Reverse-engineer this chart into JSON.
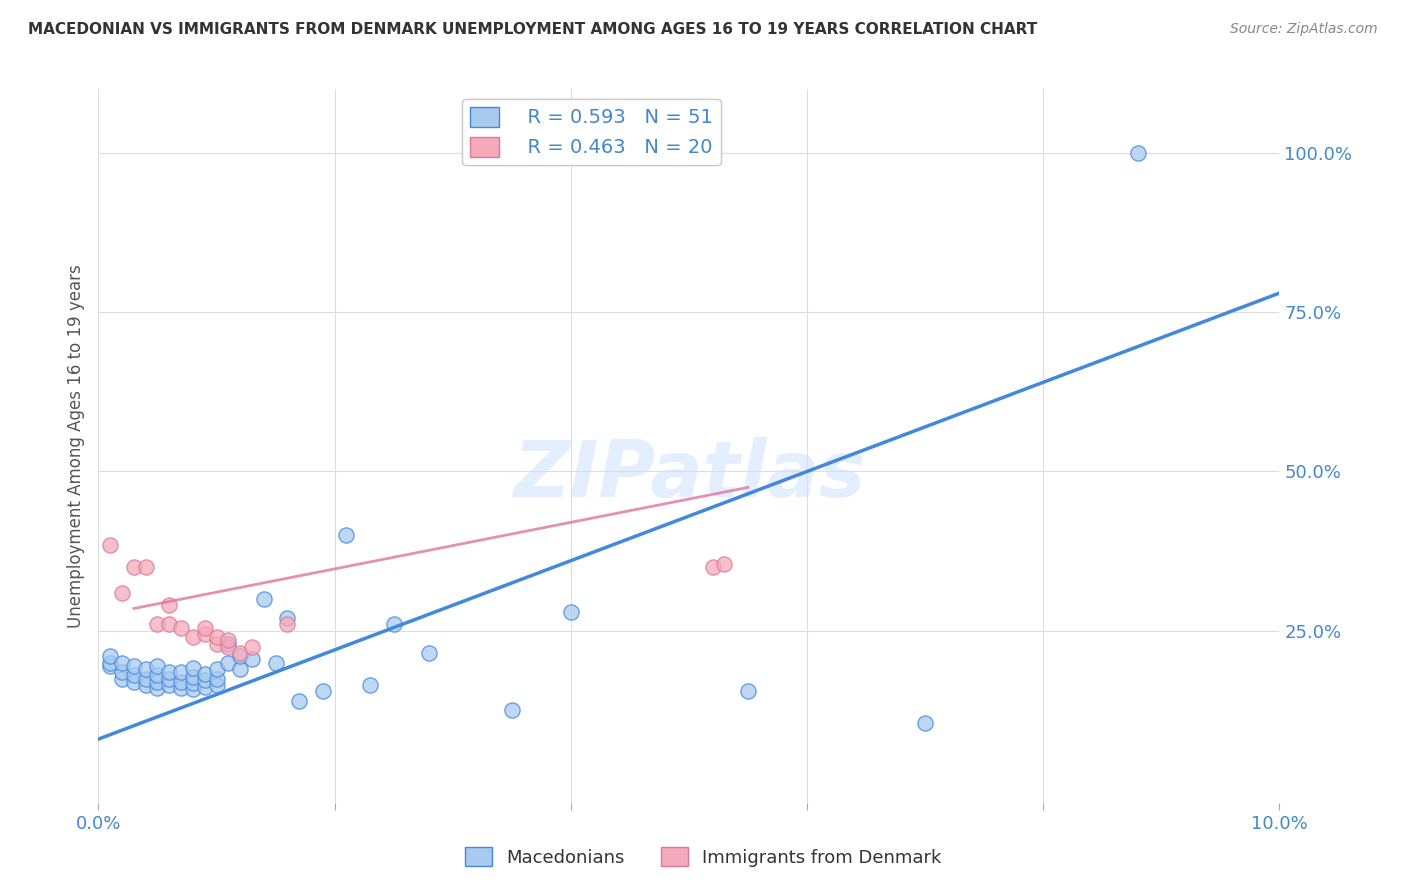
{
  "title": "MACEDONIAN VS IMMIGRANTS FROM DENMARK UNEMPLOYMENT AMONG AGES 16 TO 19 YEARS CORRELATION CHART",
  "source": "Source: ZipAtlas.com",
  "ylabel": "Unemployment Among Ages 16 to 19 years",
  "xlim": [
    0.0,
    0.1
  ],
  "ylim": [
    -0.02,
    1.1
  ],
  "yticks": [
    0.25,
    0.5,
    0.75,
    1.0
  ],
  "ytick_labels": [
    "25.0%",
    "50.0%",
    "75.0%",
    "100.0%"
  ],
  "xticks": [
    0.0,
    0.02,
    0.04,
    0.06,
    0.08,
    0.1
  ],
  "xtick_labels": [
    "0.0%",
    "",
    "",
    "",
    "",
    "10.0%"
  ],
  "blue_label": "Macedonians",
  "pink_label": "Immigrants from Denmark",
  "blue_R": 0.593,
  "blue_N": 51,
  "pink_R": 0.463,
  "pink_N": 20,
  "blue_color": "#A8CAEE",
  "pink_color": "#F4AABB",
  "blue_line_color": "#4488DD",
  "pink_line_color": "#DD7799",
  "axis_color": "#4488CC",
  "grid_color": "#DDDDDD",
  "watermark": "ZIPatlas",
  "blue_scatter_x": [
    0.001,
    0.001,
    0.001,
    0.002,
    0.002,
    0.002,
    0.003,
    0.003,
    0.003,
    0.004,
    0.004,
    0.004,
    0.005,
    0.005,
    0.005,
    0.005,
    0.006,
    0.006,
    0.006,
    0.007,
    0.007,
    0.007,
    0.008,
    0.008,
    0.008,
    0.008,
    0.009,
    0.009,
    0.009,
    0.01,
    0.01,
    0.01,
    0.011,
    0.011,
    0.012,
    0.012,
    0.013,
    0.014,
    0.015,
    0.016,
    0.017,
    0.019,
    0.021,
    0.023,
    0.025,
    0.028,
    0.035,
    0.04,
    0.055,
    0.07,
    0.088
  ],
  "blue_scatter_y": [
    0.195,
    0.2,
    0.21,
    0.175,
    0.185,
    0.2,
    0.17,
    0.18,
    0.195,
    0.165,
    0.175,
    0.19,
    0.16,
    0.17,
    0.18,
    0.195,
    0.165,
    0.175,
    0.185,
    0.16,
    0.17,
    0.185,
    0.158,
    0.168,
    0.178,
    0.192,
    0.162,
    0.172,
    0.182,
    0.165,
    0.175,
    0.19,
    0.2,
    0.23,
    0.19,
    0.21,
    0.205,
    0.3,
    0.2,
    0.27,
    0.14,
    0.155,
    0.4,
    0.165,
    0.26,
    0.215,
    0.125,
    0.28,
    0.155,
    0.105,
    1.0
  ],
  "pink_scatter_x": [
    0.001,
    0.002,
    0.003,
    0.004,
    0.005,
    0.006,
    0.006,
    0.007,
    0.008,
    0.009,
    0.009,
    0.01,
    0.01,
    0.011,
    0.011,
    0.012,
    0.013,
    0.016,
    0.052,
    0.053
  ],
  "pink_scatter_y": [
    0.385,
    0.31,
    0.35,
    0.35,
    0.26,
    0.26,
    0.29,
    0.255,
    0.24,
    0.245,
    0.255,
    0.23,
    0.24,
    0.225,
    0.235,
    0.215,
    0.225,
    0.26,
    0.35,
    0.355
  ],
  "blue_line_x": [
    0.0,
    0.1
  ],
  "blue_line_y": [
    0.08,
    0.78
  ],
  "pink_line_x": [
    0.003,
    0.055
  ],
  "pink_line_y": [
    0.285,
    0.475
  ]
}
